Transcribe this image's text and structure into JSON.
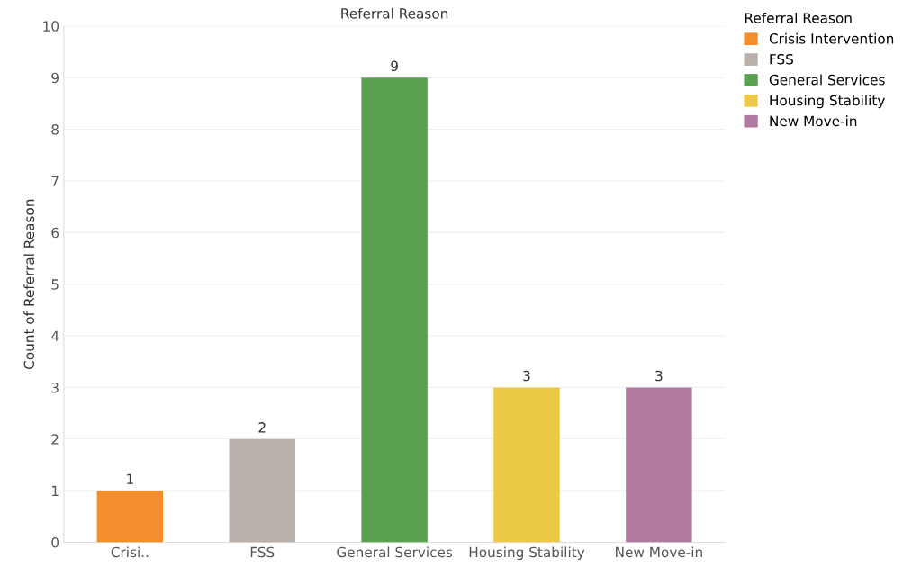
{
  "chart_data": {
    "type": "bar",
    "title": "Referral Reason",
    "ylabel": "Count of Referral Reason",
    "legend_title": "Referral Reason",
    "categories": [
      "Crisi..",
      "FSS",
      "General Services",
      "Housing Stability",
      "New Move-in"
    ],
    "series": [
      {
        "name": "Crisis Intervention",
        "color": "#f28e2b",
        "values": [
          1,
          null,
          null,
          null,
          null
        ]
      },
      {
        "name": "FSS",
        "color": "#bab0ac",
        "values": [
          null,
          2,
          null,
          null,
          null
        ]
      },
      {
        "name": "General Services",
        "color": "#59a14f",
        "values": [
          null,
          null,
          9,
          null,
          null
        ]
      },
      {
        "name": "Housing Stability",
        "color": "#edc948",
        "values": [
          null,
          null,
          null,
          3,
          null
        ]
      },
      {
        "name": "New Move-in",
        "color": "#b07aa1",
        "values": [
          null,
          null,
          null,
          null,
          3
        ]
      }
    ],
    "ylim": [
      0,
      10
    ],
    "yticks": [
      0,
      1,
      2,
      3,
      4,
      5,
      6,
      7,
      8,
      9,
      10
    ],
    "grid": "y",
    "legend": "top right",
    "data_labels": true
  }
}
